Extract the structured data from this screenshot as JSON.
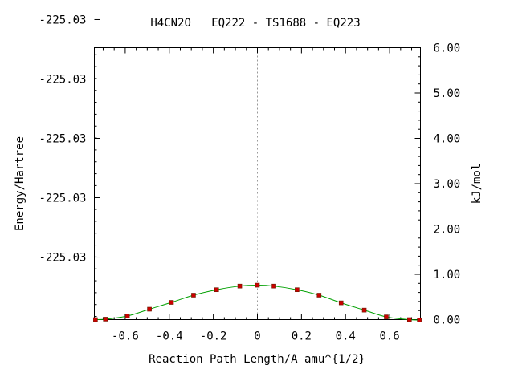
{
  "chart_data": {
    "type": "line",
    "title": "H4CN2O   EQ222 - TS1688 - EQ223",
    "xlabel": "Reaction Path Length/A amu^{1/2}",
    "ylabel_left": "Energy/Hartree",
    "ylabel_right": "kJ/mol",
    "xlim": [
      -0.74,
      0.74
    ],
    "ylim_right": [
      0.0,
      6.0
    ],
    "x_ticks": [
      -0.6,
      -0.4,
      -0.2,
      0,
      0.2,
      0.4,
      0.6
    ],
    "x_tick_labels": [
      "-0.6",
      "-0.4",
      "-0.2",
      "0",
      "0.2",
      "0.4",
      "0.6"
    ],
    "left_tick_labels": [
      "-225.03",
      "-225.03",
      "-225.03",
      "-225.03",
      "-225.03"
    ],
    "right_ticks": [
      0,
      1,
      2,
      3,
      4,
      5,
      6
    ],
    "right_tick_labels": [
      "0.00",
      "1.00",
      "2.00",
      "3.00",
      "4.00",
      "5.00",
      "6.00"
    ],
    "ts_marker_x": 0,
    "grid": false,
    "series": [
      {
        "color": "#00a000",
        "marker_color": "#cc0000",
        "x": [
          -0.735,
          -0.69,
          -0.59,
          -0.49,
          -0.39,
          -0.29,
          -0.185,
          -0.08,
          0.0,
          0.075,
          0.18,
          0.28,
          0.38,
          0.485,
          0.585,
          0.69,
          0.735
        ],
        "y": [
          0.0,
          0.01,
          0.08,
          0.23,
          0.38,
          0.54,
          0.66,
          0.74,
          0.76,
          0.74,
          0.66,
          0.54,
          0.37,
          0.21,
          0.06,
          0.0,
          -0.01
        ]
      }
    ]
  }
}
